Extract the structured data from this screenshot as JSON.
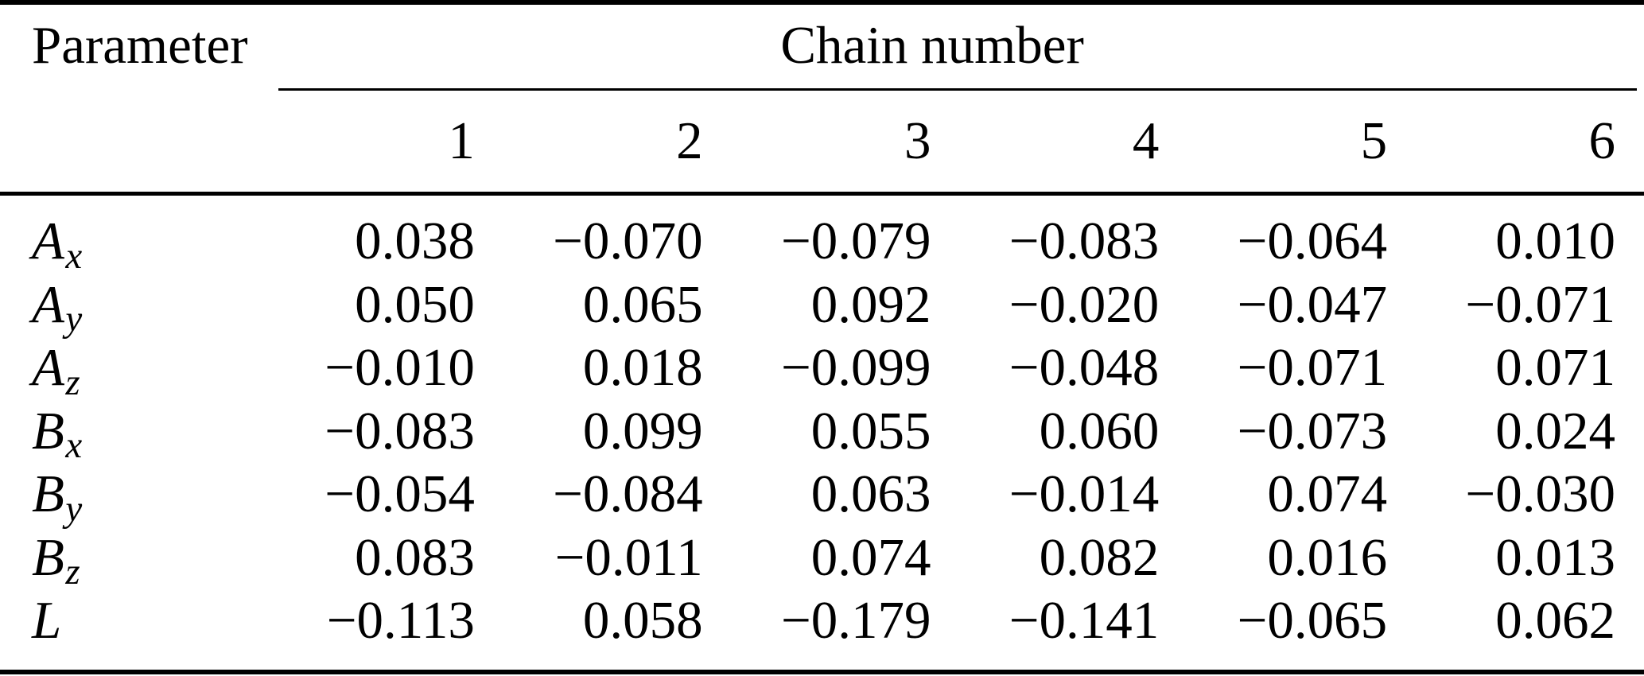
{
  "table": {
    "param_header": "Parameter",
    "span_header": "Chain number",
    "chain_numbers": [
      "1",
      "2",
      "3",
      "4",
      "5",
      "6"
    ],
    "rows": [
      {
        "base": "A",
        "sub": "x",
        "values": [
          "0.038",
          "−0.070",
          "−0.079",
          "−0.083",
          "−0.064",
          "0.010"
        ]
      },
      {
        "base": "A",
        "sub": "y",
        "values": [
          "0.050",
          "0.065",
          "0.092",
          "−0.020",
          "−0.047",
          "−0.071"
        ]
      },
      {
        "base": "A",
        "sub": "z",
        "values": [
          "−0.010",
          "0.018",
          "−0.099",
          "−0.048",
          "−0.071",
          "0.071"
        ]
      },
      {
        "base": "B",
        "sub": "x",
        "values": [
          "−0.083",
          "0.099",
          "0.055",
          "0.060",
          "−0.073",
          "0.024"
        ]
      },
      {
        "base": "B",
        "sub": "y",
        "values": [
          "−0.054",
          "−0.084",
          "0.063",
          "−0.014",
          "0.074",
          "−0.030"
        ]
      },
      {
        "base": "B",
        "sub": "z",
        "values": [
          "0.083",
          "−0.011",
          "0.074",
          "0.082",
          "0.016",
          "0.013"
        ]
      },
      {
        "base": "L",
        "sub": "",
        "values": [
          "−0.113",
          "0.058",
          "−0.179",
          "−0.141",
          "−0.065",
          "0.062"
        ]
      }
    ]
  },
  "chart_data": {
    "type": "table",
    "group_header": "Chain number",
    "columns": [
      "Parameter",
      "1",
      "2",
      "3",
      "4",
      "5",
      "6"
    ],
    "rows": [
      [
        "A_x",
        0.038,
        -0.07,
        -0.079,
        -0.083,
        -0.064,
        0.01
      ],
      [
        "A_y",
        0.05,
        0.065,
        0.092,
        -0.02,
        -0.047,
        -0.071
      ],
      [
        "A_z",
        -0.01,
        0.018,
        -0.099,
        -0.048,
        -0.071,
        0.071
      ],
      [
        "B_x",
        -0.083,
        0.099,
        0.055,
        0.06,
        -0.073,
        0.024
      ],
      [
        "B_y",
        -0.054,
        -0.084,
        0.063,
        -0.014,
        0.074,
        -0.03
      ],
      [
        "B_z",
        0.083,
        -0.011,
        0.074,
        0.082,
        0.016,
        0.013
      ],
      [
        "L",
        -0.113,
        0.058,
        -0.179,
        -0.141,
        -0.065,
        0.062
      ]
    ]
  },
  "colors": {
    "text": "#000000",
    "background": "#ffffff",
    "rule": "#000000"
  }
}
